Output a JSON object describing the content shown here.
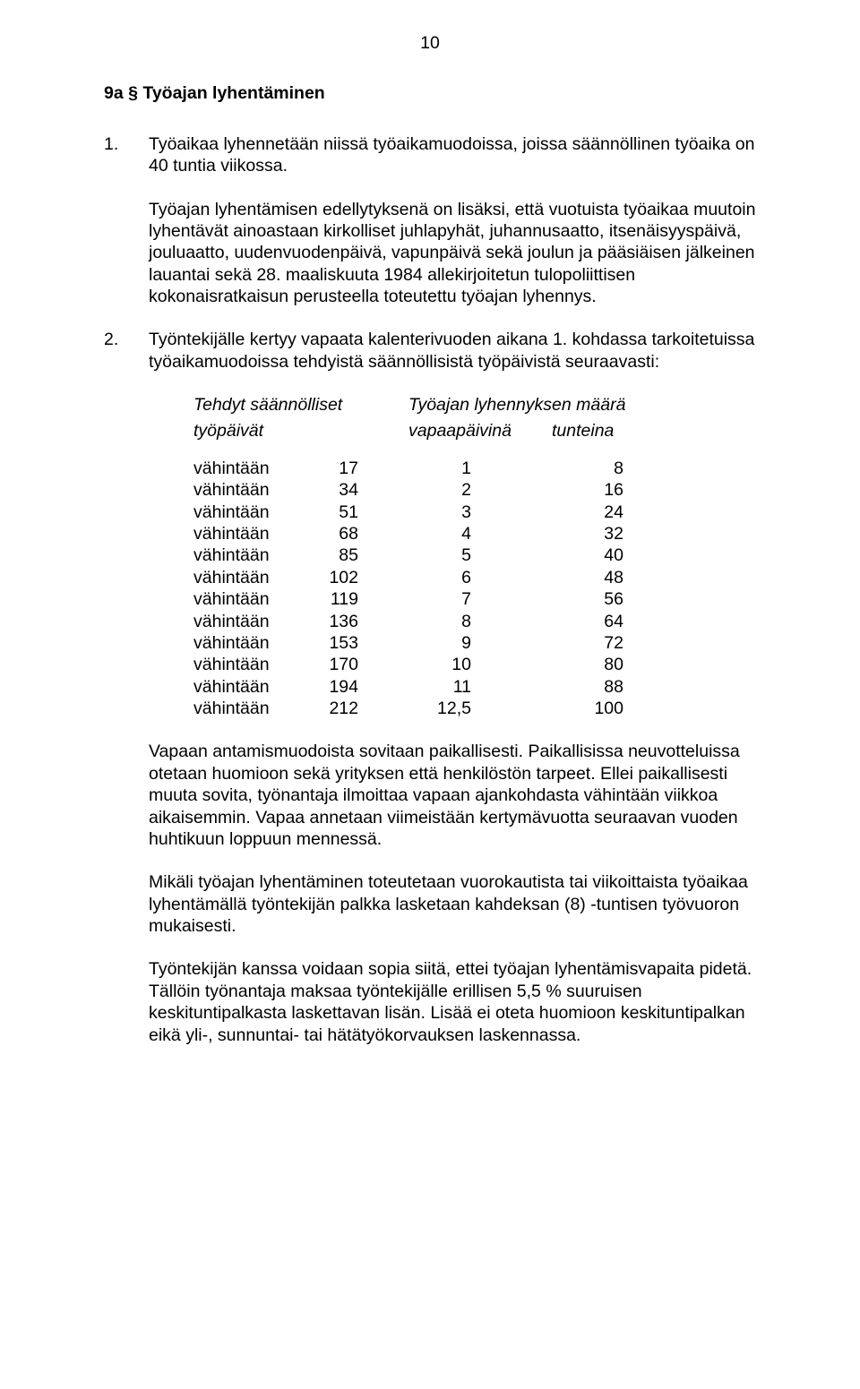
{
  "page_number": "10",
  "heading": "9a §  Työajan lyhentäminen",
  "items": [
    {
      "num": "1.",
      "paras": [
        "Työaikaa lyhennetään niissä työaikamuodoissa, joissa säännöllinen työaika on 40 tuntia viikossa.",
        "Työajan lyhentämisen edellytyksenä on lisäksi, että vuotuista työaikaa muutoin lyhentävät ainoastaan kirkolliset juhlapyhät, juhannusaatto, itsenäisyyspäivä, jouluaatto, uudenvuodenpäivä, vapunpäivä sekä joulun ja pääsiäisen jälkeinen lauantai sekä 28. maaliskuuta 1984 allekirjoitetun tulopoliittisen kokonaisratkaisun perusteella toteutettu työajan lyhennys."
      ]
    },
    {
      "num": "2.",
      "paras": [
        "Työntekijälle kertyy vapaata kalenterivuoden aikana 1. kohdassa tarkoitetuissa työaikamuodoissa tehdyistä säännöllisistä työpäivistä seuraavasti:"
      ]
    }
  ],
  "table": {
    "header_left": "Tehdyt säännölliset",
    "header_right": "Työajan lyhennyksen määrä",
    "subheader_left": "työpäivät",
    "subheader_mid": "vapaapäivinä",
    "subheader_right": "tunteina",
    "row_label": "vähintään",
    "rows": [
      {
        "days": "17",
        "vp": "1",
        "hrs": "8"
      },
      {
        "days": "34",
        "vp": "2",
        "hrs": "16"
      },
      {
        "days": "51",
        "vp": "3",
        "hrs": "24"
      },
      {
        "days": "68",
        "vp": "4",
        "hrs": "32"
      },
      {
        "days": "85",
        "vp": "5",
        "hrs": "40"
      },
      {
        "days": "102",
        "vp": "6",
        "hrs": "48"
      },
      {
        "days": "119",
        "vp": "7",
        "hrs": "56"
      },
      {
        "days": "136",
        "vp": "8",
        "hrs": "64"
      },
      {
        "days": "153",
        "vp": "9",
        "hrs": "72"
      },
      {
        "days": "170",
        "vp": "10",
        "hrs": "80"
      },
      {
        "days": "194",
        "vp": "11",
        "hrs": "88"
      },
      {
        "days": "212",
        "vp": "12,5",
        "hrs": "100"
      }
    ]
  },
  "tail_paras": [
    "Vapaan antamismuodoista sovitaan paikallisesti. Paikallisissa neuvotteluissa otetaan huomioon sekä yrityksen että henkilöstön tarpeet. Ellei paikallisesti muuta sovita, työnantaja ilmoittaa vapaan ajankohdasta vähintään viikkoa aikaisemmin. Vapaa annetaan viimeistään kertymävuotta seuraavan vuoden huhtikuun loppuun mennessä.",
    "Mikäli työajan lyhentäminen toteutetaan vuorokautista tai viikoittaista työaikaa lyhentämällä työntekijän palkka lasketaan kahdeksan (8) -tuntisen työvuoron mukaisesti.",
    "Työntekijän kanssa voidaan sopia siitä, ettei työajan lyhentämisvapaita pidetä. Tällöin työnantaja maksaa työntekijälle erillisen 5,5 % suuruisen keskituntipalkasta laskettavan lisän. Lisää ei oteta huomioon keskituntipalkan eikä yli-, sunnuntai- tai hätätyökorvauksen laskennassa."
  ]
}
